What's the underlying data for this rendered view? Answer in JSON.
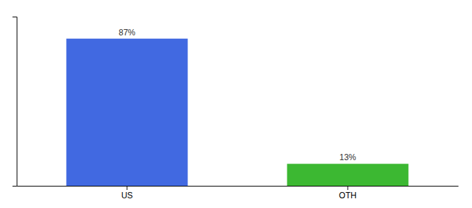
{
  "chart_data": {
    "type": "bar",
    "categories": [
      "US",
      "OTH"
    ],
    "values": [
      87,
      13
    ],
    "value_labels": [
      "87%",
      "13%"
    ],
    "colors": [
      "#4169e1",
      "#3cb832"
    ],
    "ylim": [
      0,
      100
    ],
    "data_labels": true,
    "tick_labels": "x"
  }
}
